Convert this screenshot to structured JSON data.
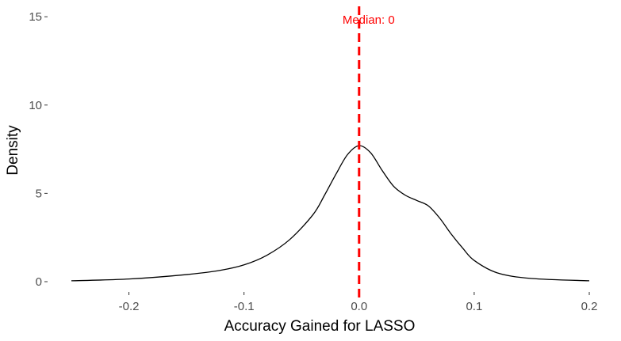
{
  "chart_data": {
    "type": "line",
    "title": "",
    "xlabel": "Accuracy Gained for LASSO",
    "ylabel": "Density",
    "xlim": [
      -0.25,
      0.2
    ],
    "ylim": [
      0,
      15.5
    ],
    "x_ticks": [
      -0.2,
      -0.1,
      0.0,
      0.1,
      0.2
    ],
    "x_tick_labels": [
      "-0.2",
      "-0.1",
      "0.0",
      "0.1",
      "0.2"
    ],
    "y_ticks": [
      0,
      5,
      10,
      15
    ],
    "y_tick_labels": [
      "0",
      "5",
      "10",
      "15"
    ],
    "grid": false,
    "legend": "none",
    "series": [
      {
        "line_color": "#000000",
        "x": [
          -0.25,
          -0.2,
          -0.15,
          -0.12,
          -0.1,
          -0.08,
          -0.06,
          -0.04,
          -0.03,
          -0.02,
          -0.01,
          0.0,
          0.01,
          0.02,
          0.03,
          0.04,
          0.05,
          0.06,
          0.07,
          0.08,
          0.09,
          0.1,
          0.12,
          0.15,
          0.2
        ],
        "y": [
          0.05,
          0.15,
          0.4,
          0.65,
          0.95,
          1.5,
          2.4,
          3.8,
          4.9,
          6.1,
          7.2,
          7.7,
          7.3,
          6.3,
          5.4,
          4.9,
          4.6,
          4.3,
          3.6,
          2.7,
          1.9,
          1.2,
          0.5,
          0.18,
          0.05
        ]
      }
    ],
    "annotations": [
      {
        "type": "vline",
        "x": 0.0,
        "line_style": "dashed",
        "color": "#ff0000",
        "label": "Median: 0"
      }
    ]
  }
}
